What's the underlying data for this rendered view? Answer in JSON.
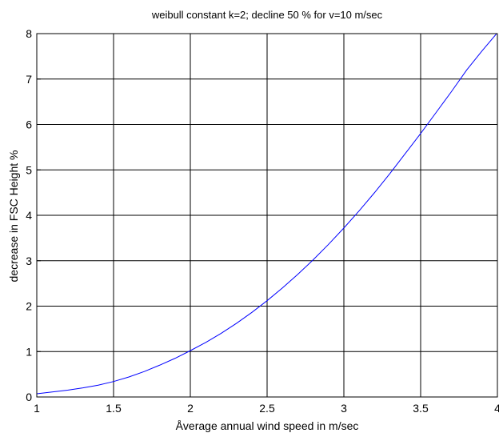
{
  "chart_data": {
    "type": "line",
    "title": "weibull constant k=2; decline 50 % for v=10 m/sec",
    "xlabel": "Åverage annual wind speed in m/sec",
    "ylabel": "decrease in FSC Height %",
    "xlim": [
      1,
      4
    ],
    "ylim": [
      0,
      8
    ],
    "xticks": [
      1,
      1.5,
      2,
      2.5,
      3,
      3.5,
      4
    ],
    "yticks": [
      0,
      1,
      2,
      3,
      4,
      5,
      6,
      7,
      8
    ],
    "grid": true,
    "legend": "none",
    "series": [
      {
        "color": "#0000ff",
        "x": [
          1.0,
          1.1,
          1.2,
          1.3,
          1.4,
          1.5,
          1.6,
          1.7,
          1.8,
          1.9,
          2.0,
          2.1,
          2.2,
          2.3,
          2.4,
          2.5,
          2.6,
          2.7,
          2.8,
          2.9,
          3.0,
          3.1,
          3.2,
          3.3,
          3.4,
          3.5,
          3.6,
          3.7,
          3.8,
          3.9,
          4.0
        ],
        "y": [
          0.07,
          0.11,
          0.15,
          0.2,
          0.26,
          0.34,
          0.44,
          0.56,
          0.7,
          0.85,
          1.02,
          1.2,
          1.4,
          1.62,
          1.86,
          2.12,
          2.4,
          2.7,
          3.02,
          3.36,
          3.72,
          4.1,
          4.5,
          4.92,
          5.36,
          5.8,
          6.26,
          6.72,
          7.2,
          7.62,
          8.02
        ]
      }
    ]
  }
}
